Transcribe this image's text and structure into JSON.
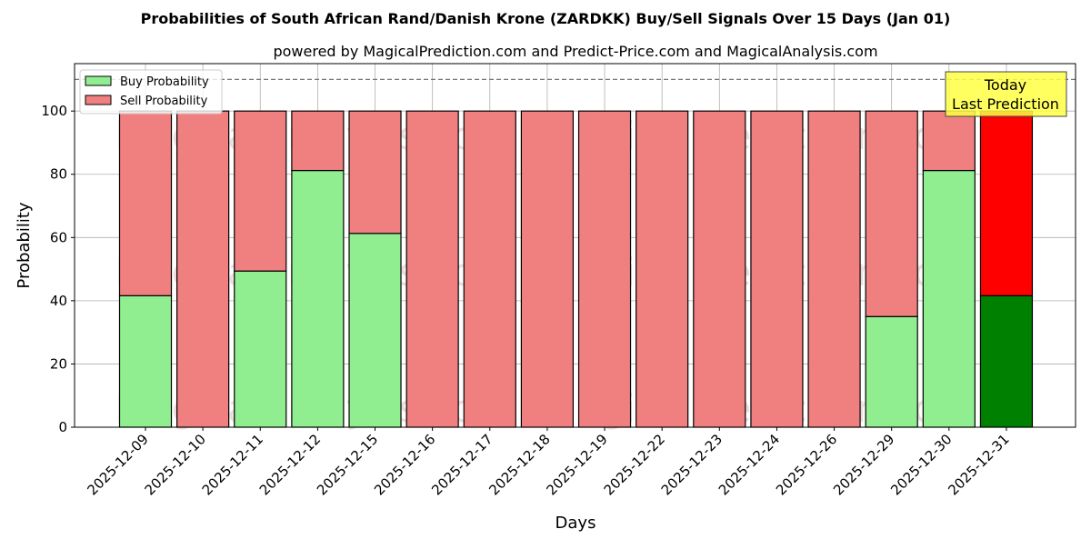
{
  "chart_data": {
    "type": "bar",
    "stacked": true,
    "title": "Probabilities of South African Rand/Danish Krone (ZARDKK) Buy/Sell Signals Over 15 Days (Jan 01)",
    "subtitle": "powered by MagicalPrediction.com and Predict-Price.com and MagicalAnalysis.com",
    "xlabel": "Days",
    "ylabel": "Probability",
    "ylim": [
      0,
      115
    ],
    "yticks": [
      0,
      20,
      40,
      60,
      80,
      100
    ],
    "grid": true,
    "legend_position": "top-left",
    "reference_line": 110,
    "categories": [
      "2025-12-09",
      "2025-12-10",
      "2025-12-11",
      "2025-12-12",
      "2025-12-15",
      "2025-12-16",
      "2025-12-17",
      "2025-12-18",
      "2025-12-19",
      "2025-12-22",
      "2025-12-23",
      "2025-12-24",
      "2025-12-26",
      "2025-12-29",
      "2025-12-30",
      "2025-12-31"
    ],
    "series": [
      {
        "name": "Buy Probability",
        "color": "#90ee90",
        "today_color": "#008000",
        "values": [
          41.6,
          0,
          49.4,
          81.2,
          61.3,
          0,
          0,
          0,
          0,
          0,
          0,
          0,
          0,
          35.0,
          81.2,
          41.6
        ]
      },
      {
        "name": "Sell Probability",
        "color": "#f08080",
        "today_color": "#ff0000",
        "values": [
          58.4,
          100,
          50.6,
          18.8,
          38.7,
          100,
          100,
          100,
          100,
          100,
          100,
          100,
          100,
          65.0,
          18.8,
          58.4
        ]
      }
    ],
    "annotation": {
      "line1": "Today",
      "line2": "Last Prediction",
      "color": "#ffff44"
    },
    "watermarks": [
      "MagicalAnalysis.com",
      "MagicalPrediction.com"
    ]
  }
}
